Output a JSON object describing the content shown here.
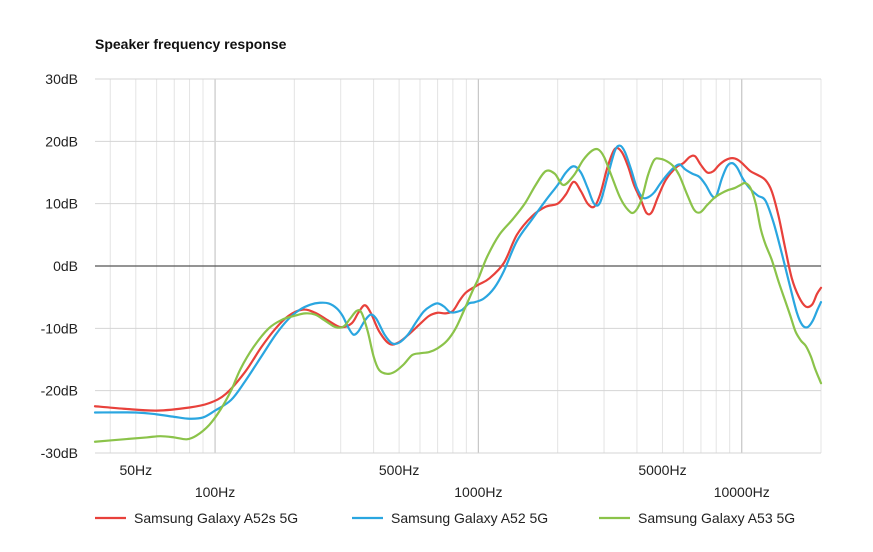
{
  "chart_data": {
    "type": "line",
    "title": "Speaker frequency response",
    "x_scale": "log",
    "xlim": [
      35,
      20000
    ],
    "ylim": [
      -30,
      30
    ],
    "grid": true,
    "legend_position": "bottom",
    "y_ticks": [
      {
        "value": 30,
        "label": "30dB"
      },
      {
        "value": 20,
        "label": "20dB"
      },
      {
        "value": 10,
        "label": "10dB"
      },
      {
        "value": 0,
        "label": "0dB"
      },
      {
        "value": -10,
        "label": "-10dB"
      },
      {
        "value": -20,
        "label": "-20dB"
      },
      {
        "value": -30,
        "label": "-30dB"
      }
    ],
    "x_ticks": [
      {
        "value": 50,
        "label": "50Hz",
        "row": 1
      },
      {
        "value": 100,
        "label": "100Hz",
        "row": 2
      },
      {
        "value": 500,
        "label": "500Hz",
        "row": 1
      },
      {
        "value": 1000,
        "label": "1000Hz",
        "row": 2
      },
      {
        "value": 5000,
        "label": "5000Hz",
        "row": 1
      },
      {
        "value": 10000,
        "label": "10000Hz",
        "row": 2
      }
    ],
    "series": [
      {
        "name": "Samsung Galaxy A52s 5G",
        "color": "#e8413b",
        "points": [
          [
            35,
            -22.5
          ],
          [
            45,
            -22.9
          ],
          [
            60,
            -23.2
          ],
          [
            80,
            -22.7
          ],
          [
            95,
            -22
          ],
          [
            110,
            -20.5
          ],
          [
            130,
            -17
          ],
          [
            150,
            -13
          ],
          [
            170,
            -10
          ],
          [
            190,
            -8
          ],
          [
            215,
            -7
          ],
          [
            240,
            -7.5
          ],
          [
            270,
            -8.8
          ],
          [
            300,
            -9.8
          ],
          [
            330,
            -9.2
          ],
          [
            350,
            -7.5
          ],
          [
            370,
            -6.3
          ],
          [
            390,
            -7.5
          ],
          [
            420,
            -10.5
          ],
          [
            460,
            -12.5
          ],
          [
            500,
            -12.2
          ],
          [
            550,
            -10.8
          ],
          [
            600,
            -9.3
          ],
          [
            650,
            -8
          ],
          [
            700,
            -7.5
          ],
          [
            750,
            -7.6
          ],
          [
            800,
            -7.2
          ],
          [
            850,
            -5.5
          ],
          [
            900,
            -4.2
          ],
          [
            1000,
            -3
          ],
          [
            1100,
            -2
          ],
          [
            1250,
            0.5
          ],
          [
            1400,
            5
          ],
          [
            1600,
            8
          ],
          [
            1800,
            9.5
          ],
          [
            2000,
            10
          ],
          [
            2150,
            11.5
          ],
          [
            2300,
            13.5
          ],
          [
            2450,
            12
          ],
          [
            2600,
            10
          ],
          [
            2750,
            9.5
          ],
          [
            2900,
            11.5
          ],
          [
            3100,
            16
          ],
          [
            3300,
            18.8
          ],
          [
            3500,
            18.3
          ],
          [
            3700,
            16
          ],
          [
            3900,
            13
          ],
          [
            4150,
            10.5
          ],
          [
            4350,
            8.5
          ],
          [
            4550,
            8.6
          ],
          [
            4800,
            11
          ],
          [
            5100,
            13.5
          ],
          [
            5400,
            15
          ],
          [
            5700,
            16
          ],
          [
            6000,
            16.5
          ],
          [
            6350,
            17.5
          ],
          [
            6650,
            17.6
          ],
          [
            7000,
            16.2
          ],
          [
            7400,
            15
          ],
          [
            7800,
            15.2
          ],
          [
            8200,
            16.2
          ],
          [
            8700,
            17
          ],
          [
            9200,
            17.3
          ],
          [
            9700,
            17
          ],
          [
            10200,
            16.2
          ],
          [
            10800,
            15.2
          ],
          [
            11500,
            14.6
          ],
          [
            12300,
            13.8
          ],
          [
            13000,
            12
          ],
          [
            13800,
            8
          ],
          [
            14600,
            3
          ],
          [
            15500,
            -2
          ],
          [
            16500,
            -5
          ],
          [
            17500,
            -6.5
          ],
          [
            18500,
            -6.2
          ],
          [
            19300,
            -4.5
          ],
          [
            20000,
            -3.5
          ]
        ]
      },
      {
        "name": "Samsung Galaxy A52 5G",
        "color": "#2aa6e0",
        "points": [
          [
            35,
            -23.5
          ],
          [
            50,
            -23.5
          ],
          [
            60,
            -23.8
          ],
          [
            70,
            -24.2
          ],
          [
            80,
            -24.5
          ],
          [
            90,
            -24.3
          ],
          [
            100,
            -23.2
          ],
          [
            115,
            -21.5
          ],
          [
            130,
            -18.5
          ],
          [
            150,
            -14.5
          ],
          [
            170,
            -11
          ],
          [
            190,
            -8.5
          ],
          [
            210,
            -7
          ],
          [
            230,
            -6.2
          ],
          [
            250,
            -5.9
          ],
          [
            270,
            -6
          ],
          [
            290,
            -6.8
          ],
          [
            305,
            -8
          ],
          [
            320,
            -9.8
          ],
          [
            335,
            -11
          ],
          [
            350,
            -10.5
          ],
          [
            370,
            -8.8
          ],
          [
            390,
            -7.8
          ],
          [
            410,
            -8.5
          ],
          [
            440,
            -11
          ],
          [
            470,
            -12.4
          ],
          [
            500,
            -12.3
          ],
          [
            540,
            -11
          ],
          [
            580,
            -9
          ],
          [
            620,
            -7.3
          ],
          [
            660,
            -6.4
          ],
          [
            700,
            -6
          ],
          [
            740,
            -6.5
          ],
          [
            780,
            -7.4
          ],
          [
            820,
            -7.4
          ],
          [
            870,
            -7
          ],
          [
            920,
            -6
          ],
          [
            970,
            -5.8
          ],
          [
            1050,
            -5.2
          ],
          [
            1150,
            -3.5
          ],
          [
            1250,
            -0.8
          ],
          [
            1400,
            4
          ],
          [
            1600,
            7.5
          ],
          [
            1800,
            10.5
          ],
          [
            2000,
            13
          ],
          [
            2150,
            15
          ],
          [
            2300,
            16
          ],
          [
            2450,
            15
          ],
          [
            2600,
            12.5
          ],
          [
            2750,
            10
          ],
          [
            2900,
            10.2
          ],
          [
            3100,
            14.5
          ],
          [
            3300,
            18.5
          ],
          [
            3450,
            19.3
          ],
          [
            3600,
            18.3
          ],
          [
            3800,
            15.5
          ],
          [
            4000,
            12.5
          ],
          [
            4200,
            11
          ],
          [
            4400,
            11
          ],
          [
            4650,
            11.8
          ],
          [
            4900,
            13.2
          ],
          [
            5200,
            14.6
          ],
          [
            5500,
            15.7
          ],
          [
            5800,
            16.3
          ],
          [
            6100,
            15.5
          ],
          [
            6500,
            14.8
          ],
          [
            6900,
            14.3
          ],
          [
            7300,
            13
          ],
          [
            7700,
            11.3
          ],
          [
            8000,
            11.2
          ],
          [
            8400,
            14
          ],
          [
            8800,
            16
          ],
          [
            9200,
            16.5
          ],
          [
            9600,
            15.8
          ],
          [
            10100,
            14
          ],
          [
            10700,
            12.5
          ],
          [
            11500,
            11.3
          ],
          [
            12300,
            10.5
          ],
          [
            13200,
            7
          ],
          [
            14200,
            2
          ],
          [
            15200,
            -3
          ],
          [
            16200,
            -7.5
          ],
          [
            17000,
            -9.5
          ],
          [
            17800,
            -9.8
          ],
          [
            18600,
            -8.8
          ],
          [
            19400,
            -7
          ],
          [
            20000,
            -5.8
          ]
        ]
      },
      {
        "name": "Samsung Galaxy A53 5G",
        "color": "#8bc34a",
        "points": [
          [
            35,
            -28.2
          ],
          [
            45,
            -27.8
          ],
          [
            55,
            -27.5
          ],
          [
            62,
            -27.3
          ],
          [
            70,
            -27.5
          ],
          [
            78,
            -27.8
          ],
          [
            85,
            -27.2
          ],
          [
            95,
            -25.5
          ],
          [
            105,
            -23
          ],
          [
            115,
            -20
          ],
          [
            125,
            -16.5
          ],
          [
            140,
            -13
          ],
          [
            160,
            -10
          ],
          [
            180,
            -8.6
          ],
          [
            200,
            -8
          ],
          [
            220,
            -7.6
          ],
          [
            240,
            -7.8
          ],
          [
            260,
            -8.7
          ],
          [
            280,
            -9.6
          ],
          [
            295,
            -9.9
          ],
          [
            310,
            -9.6
          ],
          [
            325,
            -8.5
          ],
          [
            345,
            -7.2
          ],
          [
            360,
            -7.5
          ],
          [
            380,
            -10.5
          ],
          [
            400,
            -14.5
          ],
          [
            420,
            -16.7
          ],
          [
            450,
            -17.3
          ],
          [
            480,
            -17
          ],
          [
            520,
            -15.8
          ],
          [
            560,
            -14.3
          ],
          [
            600,
            -14
          ],
          [
            650,
            -13.8
          ],
          [
            700,
            -13.2
          ],
          [
            760,
            -12
          ],
          [
            820,
            -10
          ],
          [
            880,
            -7.2
          ],
          [
            950,
            -4
          ],
          [
            1000,
            -2
          ],
          [
            1080,
            1.5
          ],
          [
            1200,
            5
          ],
          [
            1350,
            7.5
          ],
          [
            1500,
            10
          ],
          [
            1650,
            13
          ],
          [
            1800,
            15.2
          ],
          [
            1950,
            14.8
          ],
          [
            2100,
            13
          ],
          [
            2300,
            14.5
          ],
          [
            2500,
            17
          ],
          [
            2700,
            18.5
          ],
          [
            2850,
            18.7
          ],
          [
            3000,
            17.5
          ],
          [
            3200,
            14.5
          ],
          [
            3450,
            11
          ],
          [
            3700,
            9
          ],
          [
            3900,
            8.6
          ],
          [
            4150,
            10.5
          ],
          [
            4400,
            14.5
          ],
          [
            4650,
            17
          ],
          [
            4900,
            17.2
          ],
          [
            5200,
            16.8
          ],
          [
            5500,
            16
          ],
          [
            5800,
            14.5
          ],
          [
            6200,
            11.5
          ],
          [
            6600,
            9
          ],
          [
            6950,
            8.6
          ],
          [
            7400,
            9.8
          ],
          [
            7900,
            11
          ],
          [
            8400,
            11.7
          ],
          [
            8900,
            12.2
          ],
          [
            9400,
            12.5
          ],
          [
            9900,
            13
          ],
          [
            10300,
            13.3
          ],
          [
            10800,
            12.5
          ],
          [
            11300,
            10
          ],
          [
            11800,
            6
          ],
          [
            12300,
            3.5
          ],
          [
            13000,
            1
          ],
          [
            13800,
            -2.5
          ],
          [
            14600,
            -5.5
          ],
          [
            15300,
            -8
          ],
          [
            16000,
            -10.5
          ],
          [
            16800,
            -12
          ],
          [
            17500,
            -12.8
          ],
          [
            18300,
            -14.5
          ],
          [
            19000,
            -16.5
          ],
          [
            20000,
            -18.8
          ]
        ]
      }
    ]
  }
}
